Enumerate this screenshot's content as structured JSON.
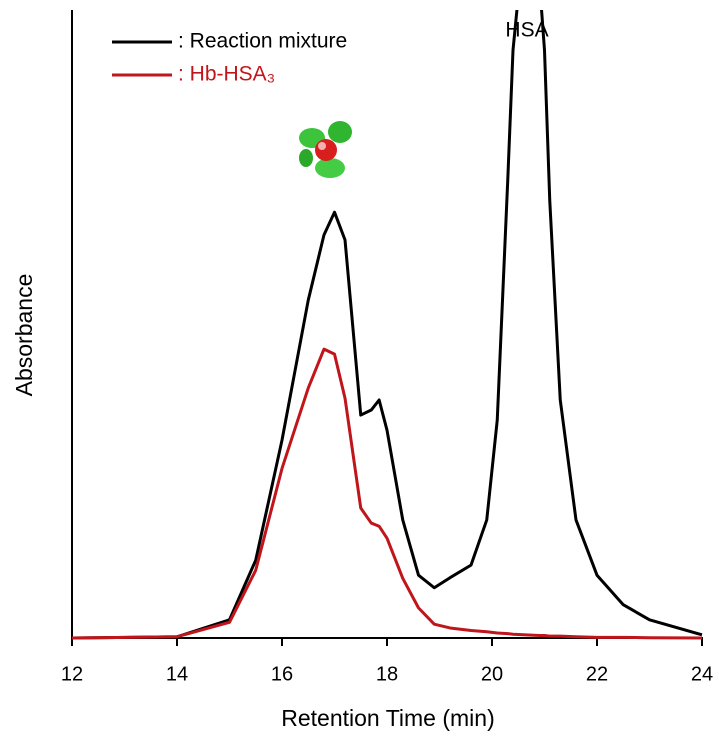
{
  "chart_data": {
    "type": "line",
    "xlabel": "Retention Time (min)",
    "ylabel": "Absorbance",
    "annotations": [
      "HSA"
    ],
    "x": [
      12,
      14,
      15,
      15.5,
      16,
      16.5,
      16.8,
      17,
      17.2,
      17.5,
      17.7,
      17.85,
      18,
      18.3,
      18.6,
      18.9,
      19.2,
      19.6,
      19.9,
      20.1,
      20.3,
      20.4,
      20.65,
      20.9,
      21,
      21.1,
      21.3,
      21.6,
      22,
      22.5,
      23,
      24
    ],
    "series": [
      {
        "name": ": Reaction mixture",
        "color": "#000000",
        "values": [
          0,
          0.2,
          2.9,
          12.4,
          31.5,
          53.8,
          64.2,
          67.8,
          63.4,
          35.5,
          36.3,
          37.9,
          33.1,
          18.8,
          10,
          8,
          9.6,
          11.6,
          18.8,
          34.7,
          72.9,
          93.6,
          115,
          105,
          93.6,
          69.7,
          37.9,
          18.8,
          10,
          5.3,
          2.9,
          0.5
        ]
      },
      {
        "name": ": Hb-HSA₃",
        "color": "#c0161b",
        "values": [
          0,
          0.2,
          2.5,
          10.8,
          27,
          39.8,
          46,
          45.2,
          38.2,
          20.7,
          18.3,
          17.8,
          15.9,
          9.5,
          4.8,
          2.2,
          1.6,
          1.2,
          1,
          0.8,
          0.7,
          0.6,
          0.5,
          0.4,
          0.4,
          0.3,
          0.3,
          0.2,
          0.1,
          0.1,
          0.05,
          0
        ]
      }
    ],
    "xlim": [
      12,
      24
    ],
    "xticks": [
      12,
      14,
      16,
      18,
      20,
      22,
      24
    ],
    "ylim": [
      0,
      100
    ],
    "legend": "upper left"
  }
}
